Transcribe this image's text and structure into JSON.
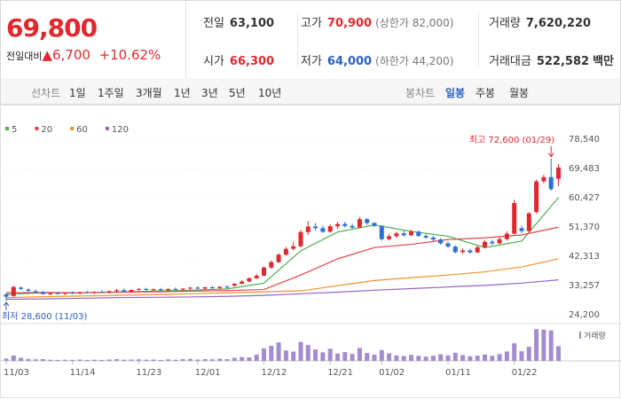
{
  "quote": {
    "price": "69,800",
    "change_label": "전일대비",
    "change": "▲6,700",
    "change_pct": "+10.62%",
    "fields": [
      {
        "label": "전일",
        "value": "63,100"
      },
      {
        "label": "고가",
        "value": "70,900",
        "note": "(상한가 82,000)"
      },
      {
        "label": "거래량",
        "value": "7,620,220"
      },
      {
        "label": "시가",
        "value": "66,300"
      },
      {
        "label": "저가",
        "value": "64,000",
        "note": "(하한가 44,200)"
      },
      {
        "label": "거래대금",
        "value": "522,582",
        "note": "백만"
      }
    ]
  },
  "toolbar": {
    "line_label": "선차트",
    "periods": [
      "1일",
      "1주일",
      "3개월",
      "1년",
      "3년",
      "5년",
      "10년"
    ],
    "candle_label": "봉차트",
    "candles": [
      "일봉",
      "주봉",
      "월봉"
    ],
    "selected": "일봉"
  },
  "chart_data": {
    "type": "candlestick",
    "categories": [
      "11/03",
      null,
      null,
      null,
      null,
      null,
      null,
      null,
      null,
      "11/14",
      null,
      null,
      null,
      null,
      null,
      null,
      null,
      null,
      "11/23",
      null,
      null,
      null,
      null,
      null,
      null,
      null,
      "12/01",
      null,
      null,
      null,
      null,
      null,
      null,
      null,
      null,
      "12/12",
      null,
      null,
      null,
      null,
      null,
      null,
      null,
      null,
      "12/21",
      null,
      null,
      null,
      null,
      null,
      null,
      "01/02",
      null,
      null,
      null,
      null,
      null,
      null,
      null,
      null,
      "01/11",
      null,
      null,
      null,
      null,
      null,
      null,
      null,
      null,
      "01/22",
      null,
      null,
      null,
      null,
      null,
      null
    ],
    "open": [
      30500,
      30000,
      32600,
      32000,
      31500,
      31200,
      30600,
      30900,
      30700,
      31000,
      30800,
      31200,
      31000,
      31300,
      31100,
      31500,
      31800,
      31400,
      31900,
      32200,
      31900,
      32100,
      31800,
      32200,
      32000,
      32300,
      32600,
      32300,
      32700,
      32500,
      32900,
      33200,
      33800,
      34500,
      35500,
      36300,
      38800,
      40500,
      42800,
      44600,
      45400,
      49800,
      51500,
      51000,
      49900,
      51600,
      52300,
      51700,
      51200,
      53800,
      52600,
      51700,
      47600,
      48500,
      49400,
      48800,
      49900,
      48600,
      48100,
      47500,
      46300,
      45300,
      43600,
      44100,
      43500,
      45100,
      46800,
      46300,
      47600,
      49300,
      51000,
      50100,
      56000,
      65500,
      66800,
      66300
    ],
    "high": [
      31000,
      33200,
      33000,
      32400,
      32000,
      31600,
      31200,
      31300,
      31100,
      31500,
      31400,
      31600,
      31500,
      31800,
      31700,
      32200,
      32300,
      32000,
      32500,
      32600,
      32400,
      32500,
      32300,
      32700,
      32400,
      32800,
      33000,
      32900,
      33100,
      33000,
      33300,
      34000,
      34900,
      35800,
      36800,
      39200,
      41000,
      43300,
      45200,
      46800,
      50400,
      53200,
      52600,
      51800,
      52200,
      52900,
      53000,
      52400,
      54500,
      54100,
      52900,
      51900,
      49200,
      50000,
      50200,
      50500,
      50300,
      49100,
      48600,
      47900,
      46900,
      45700,
      44800,
      44600,
      45500,
      47300,
      47400,
      48200,
      50000,
      59800,
      51800,
      56000,
      66000,
      67500,
      72600,
      70900
    ],
    "low": [
      28600,
      29800,
      31800,
      31200,
      30800,
      30400,
      30200,
      30500,
      30300,
      30600,
      30500,
      30800,
      30700,
      30900,
      30800,
      31200,
      31300,
      31100,
      31600,
      31700,
      31500,
      31600,
      31400,
      31800,
      31600,
      31900,
      32100,
      32000,
      32200,
      32100,
      32400,
      32900,
      33600,
      34300,
      35200,
      36100,
      38400,
      40200,
      42400,
      44100,
      45000,
      48900,
      50300,
      49500,
      49600,
      50800,
      51200,
      50800,
      51000,
      52000,
      51300,
      47100,
      47200,
      48000,
      48400,
      48600,
      48300,
      47700,
      47000,
      45900,
      44900,
      43200,
      43000,
      43100,
      43300,
      44700,
      45800,
      46000,
      47200,
      49000,
      49400,
      49800,
      55500,
      64800,
      62600,
      64000
    ],
    "close": [
      29800,
      32800,
      32200,
      31600,
      31200,
      30600,
      30900,
      30700,
      31000,
      30800,
      31200,
      31000,
      31300,
      31100,
      31500,
      31800,
      31400,
      31900,
      32200,
      31900,
      32100,
      31800,
      32200,
      32000,
      32300,
      32600,
      32300,
      32700,
      32500,
      32900,
      32600,
      33800,
      34500,
      35500,
      36300,
      38800,
      40500,
      42800,
      44600,
      45400,
      49800,
      51500,
      51000,
      49900,
      51600,
      52300,
      51700,
      51200,
      53800,
      52600,
      51700,
      47600,
      48500,
      49400,
      48800,
      49900,
      48600,
      48100,
      47500,
      46300,
      45300,
      43600,
      44100,
      43500,
      45100,
      46800,
      46300,
      47600,
      49300,
      58800,
      50100,
      55600,
      65500,
      66800,
      63100,
      69800
    ],
    "up_color": "#e0292f",
    "down_color": "#2a6fd6",
    "ylim": [
      24200,
      78540
    ],
    "yticks": [
      {
        "value": 24200,
        "label": "24,200"
      },
      {
        "value": 33257,
        "label": "33,257"
      },
      {
        "value": 42313,
        "label": "42,313"
      },
      {
        "value": 51370,
        "label": "51,370"
      },
      {
        "value": 60427,
        "label": "60,427"
      },
      {
        "value": 69483,
        "label": "69,483"
      },
      {
        "value": 78540,
        "label": "78,540"
      }
    ],
    "grid": true,
    "moving_averages": [
      {
        "name": "5",
        "color": "#4caf50",
        "x": [
          0,
          5,
          10,
          15,
          20,
          25,
          30,
          35,
          40,
          45,
          50,
          55,
          60,
          65,
          70,
          75
        ],
        "values": [
          30500,
          31000,
          31000,
          31200,
          31500,
          31800,
          32200,
          34000,
          44000,
          49800,
          52000,
          50000,
          48500,
          45000,
          47000,
          60500
        ]
      },
      {
        "name": "20",
        "color": "#e0464b",
        "x": [
          0,
          5,
          10,
          15,
          20,
          25,
          30,
          35,
          40,
          45,
          50,
          55,
          60,
          65,
          70,
          75
        ],
        "values": [
          31000,
          31100,
          31000,
          31200,
          31300,
          31500,
          31700,
          32000,
          36500,
          41500,
          45000,
          46000,
          47500,
          48000,
          48900,
          51300
        ]
      },
      {
        "name": "60",
        "color": "#f0922b",
        "x": [
          0,
          5,
          10,
          15,
          20,
          25,
          30,
          35,
          40,
          45,
          50,
          55,
          60,
          65,
          70,
          75
        ],
        "values": [
          29500,
          29800,
          30000,
          30200,
          30400,
          30700,
          31000,
          31300,
          31600,
          33200,
          34800,
          35700,
          36500,
          37500,
          39000,
          41500
        ]
      },
      {
        "name": "120",
        "color": "#9466c4",
        "x": [
          0,
          5,
          10,
          15,
          20,
          25,
          30,
          35,
          40,
          45,
          50,
          55,
          60,
          65,
          70,
          75
        ],
        "values": [
          29000,
          29100,
          29300,
          29500,
          29600,
          29700,
          29900,
          30200,
          30700,
          31200,
          31800,
          32300,
          32800,
          33300,
          34000,
          35000
        ]
      }
    ],
    "annotations": [
      {
        "text": "최고 72,600 (01/29)",
        "index": 74,
        "value": 72600
      },
      {
        "text": "최저 28,600 (11/03)",
        "index": 0,
        "value": 28600
      }
    ],
    "volume": {
      "name": "거래량",
      "color": "#a58bcf",
      "ylim": [
        0,
        17000000
      ],
      "values": [
        1200000,
        2800000,
        1600000,
        1000000,
        800000,
        900000,
        600000,
        500000,
        600000,
        500000,
        700000,
        500000,
        600000,
        500000,
        700000,
        900000,
        600000,
        700000,
        800000,
        600000,
        700000,
        500000,
        800000,
        600000,
        900000,
        1000000,
        700000,
        900000,
        800000,
        1100000,
        900000,
        1600000,
        2000000,
        1800000,
        3200000,
        6500000,
        7800000,
        9600000,
        5400000,
        4800000,
        9800000,
        8200000,
        5900000,
        4400000,
        6300000,
        3800000,
        4600000,
        3600000,
        6700000,
        4100000,
        3200000,
        5600000,
        3900000,
        2800000,
        2500000,
        3100000,
        2600000,
        2200000,
        2700000,
        3400000,
        2900000,
        4200000,
        3000000,
        2400000,
        2700000,
        3300000,
        2600000,
        3500000,
        4900000,
        9100000,
        5000000,
        7300000,
        16400000,
        16200000,
        15800000,
        7620220
      ]
    }
  }
}
